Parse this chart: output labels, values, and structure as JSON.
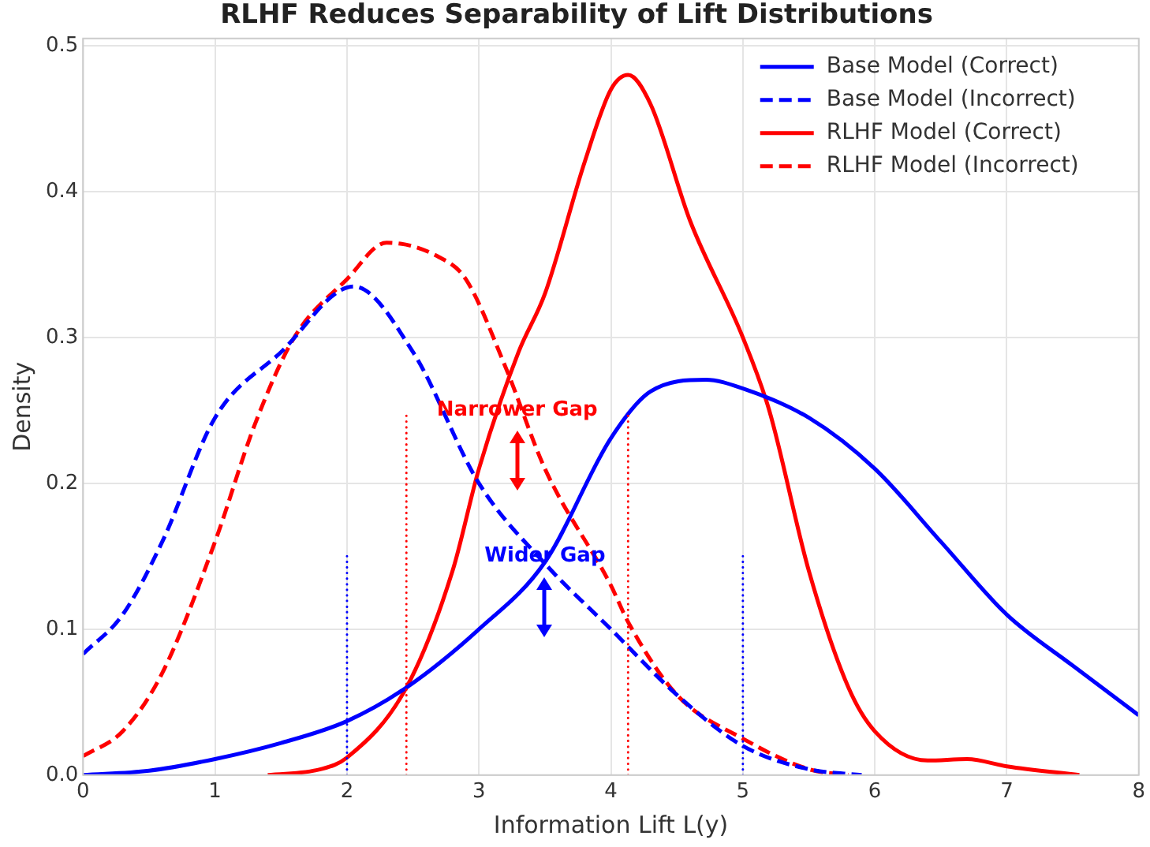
{
  "chart_data": {
    "type": "line",
    "title": "RLHF Reduces Separability of Lift Distributions",
    "xlabel": "Information Lift L(y)",
    "ylabel": "Density",
    "xlim": [
      0,
      8
    ],
    "xticks": [
      0,
      1,
      2,
      3,
      4,
      5,
      6,
      7,
      8
    ],
    "ylim": [
      0,
      0.505
    ],
    "yticks": [
      {
        "value": 0,
        "label": "0.0"
      },
      {
        "value": 0.1,
        "label": "0.1"
      },
      {
        "value": 0.2,
        "label": "0.2"
      },
      {
        "value": 0.3,
        "label": "0.3"
      },
      {
        "value": 0.4,
        "label": "0.4"
      },
      {
        "value": 0.5,
        "label": "0.5"
      }
    ],
    "grid": true,
    "legend": "top right",
    "marker": "none",
    "series": [
      {
        "name": "Base Model (Correct)",
        "color": "#0000ff",
        "line_style": "solid",
        "x": [
          0,
          0.5,
          1,
          1.5,
          2,
          2.45,
          3,
          3.5,
          4,
          4.3,
          4.72,
          5,
          5.5,
          6,
          6.5,
          7,
          7.5,
          8
        ],
        "values": [
          0,
          0.003,
          0.011,
          0.022,
          0.037,
          0.06,
          0.1,
          0.146,
          0.231,
          0.263,
          0.271,
          0.265,
          0.245,
          0.21,
          0.16,
          0.11,
          0.075,
          0.041
        ]
      },
      {
        "name": "Base Model (Incorrect)",
        "color": "#0000ff",
        "line_style": "dashed",
        "x": [
          0,
          0.3,
          0.6,
          1,
          1.5,
          2.05,
          2.5,
          3,
          3.5,
          4,
          4.5,
          5,
          5.5,
          5.9
        ],
        "values": [
          0.083,
          0.11,
          0.16,
          0.245,
          0.29,
          0.335,
          0.29,
          0.2,
          0.145,
          0.1,
          0.055,
          0.02,
          0.004,
          0
        ]
      },
      {
        "name": "RLHF Model (Correct)",
        "color": "#ff0000",
        "line_style": "solid",
        "x": [
          1.4,
          1.8,
          2,
          2.45,
          2.8,
          3,
          3.3,
          3.5,
          3.8,
          4,
          4.13,
          4.3,
          4.6,
          5,
          5.2,
          5.5,
          5.8,
          6,
          6.4,
          6.7,
          7,
          7.55
        ],
        "values": [
          0,
          0.004,
          0.012,
          0.06,
          0.14,
          0.21,
          0.29,
          0.33,
          0.42,
          0.47,
          0.48,
          0.46,
          0.38,
          0.3,
          0.25,
          0.14,
          0.06,
          0.03,
          0.01,
          0.011,
          0.006,
          0
        ]
      },
      {
        "name": "RLHF Model (Incorrect)",
        "color": "#ff0000",
        "line_style": "dashed",
        "x": [
          0,
          0.3,
          0.6,
          1,
          1.3,
          1.6,
          2,
          2.3,
          2.7,
          2.9,
          3.2,
          3.5,
          4,
          4.13,
          4.5,
          5,
          5.5,
          5.8
        ],
        "values": [
          0.013,
          0.03,
          0.07,
          0.16,
          0.24,
          0.3,
          0.34,
          0.365,
          0.355,
          0.34,
          0.28,
          0.21,
          0.13,
          0.105,
          0.055,
          0.025,
          0.004,
          0
        ]
      },
      {
        "color": "#ff0000",
        "line_style": "dotted",
        "x": [
          2.45,
          2.45
        ],
        "values": [
          0,
          0.25
        ]
      },
      {
        "color": "#ff0000",
        "line_style": "dotted",
        "x": [
          4.13,
          4.13
        ],
        "values": [
          0,
          0.25
        ]
      },
      {
        "color": "#0000ff",
        "line_style": "dotted",
        "x": [
          2,
          2
        ],
        "values": [
          0,
          0.15
        ]
      },
      {
        "color": "#0000ff",
        "line_style": "dotted",
        "x": [
          5,
          5
        ],
        "values": [
          0,
          0.15
        ]
      }
    ],
    "annotations": [
      "Narrower Gap",
      "Wider Gap"
    ]
  }
}
